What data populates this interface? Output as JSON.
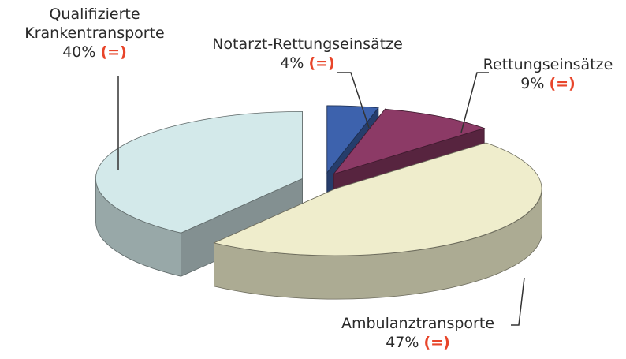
{
  "chart_data": {
    "type": "pie3d",
    "categories": [
      "Notarzt-Rettungseinsätze",
      "Rettungseinsätze",
      "Ambulanztransporte",
      "Qualifizierte Krankentransporte"
    ],
    "values": [
      4,
      9,
      47,
      40
    ],
    "value_labels": [
      "4%",
      "9%",
      "47%",
      "40%"
    ],
    "changes": [
      "(=)",
      "(=)",
      "(=)",
      "(=)"
    ],
    "colors": [
      "#3d62ad",
      "#8c3a66",
      "#efedcc",
      "#d3e9ea"
    ]
  }
}
